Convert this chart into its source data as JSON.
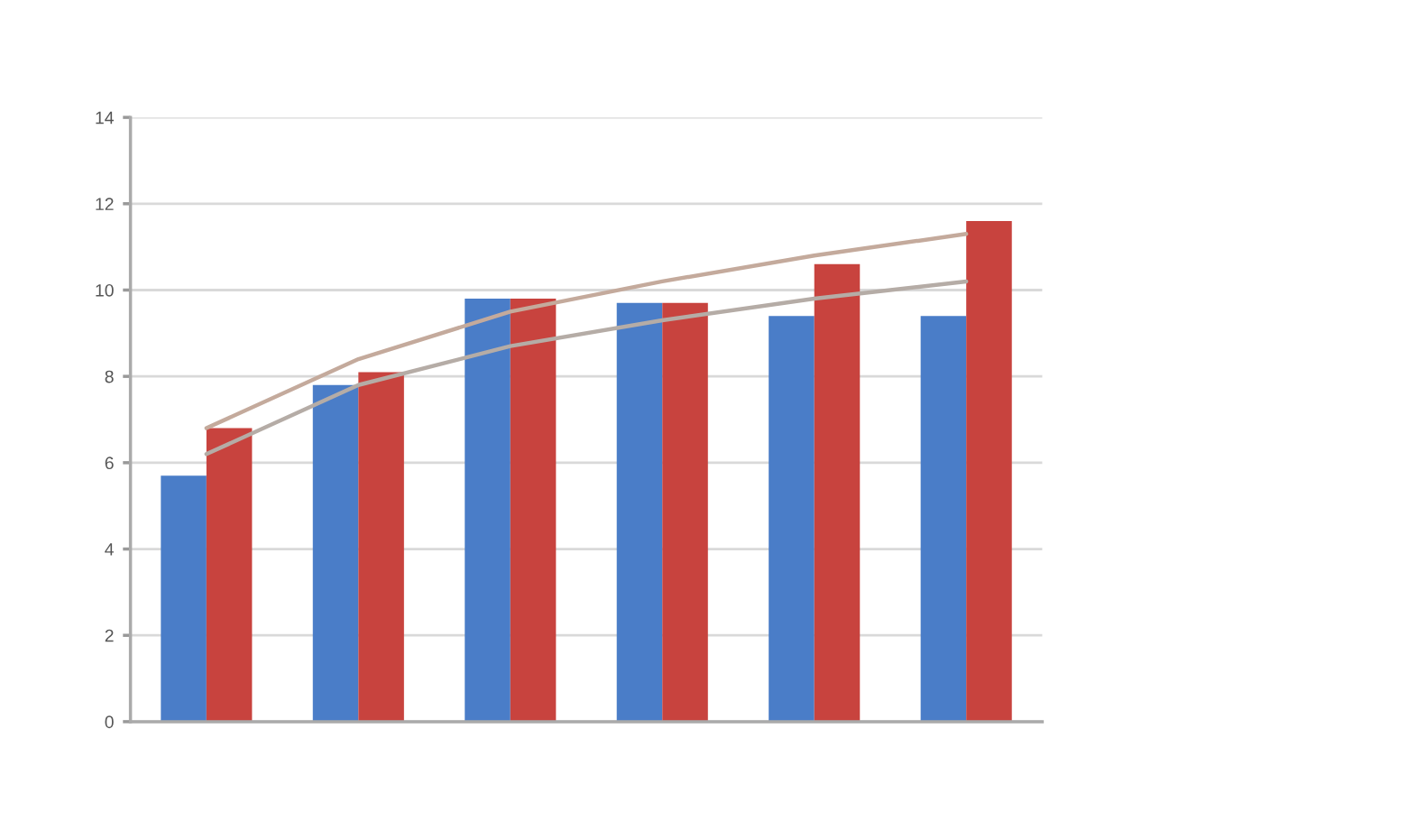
{
  "chart_data": {
    "type": "bar",
    "categories": [
      null,
      null,
      null,
      null,
      null,
      null
    ],
    "series": [
      {
        "color": "#4a7dc8",
        "values": [
          5.7,
          7.8,
          9.8,
          9.7,
          9.4,
          9.4
        ]
      },
      {
        "color": "#c8433e",
        "values": [
          6.8,
          8.1,
          9.8,
          9.7,
          10.6,
          11.6
        ]
      },
      {
        "type": "line",
        "color": "#b5aca6",
        "values": [
          6.2,
          7.8,
          8.7,
          9.3,
          9.8,
          10.2
        ]
      },
      {
        "type": "line",
        "color": "#c4aa9c",
        "values": [
          6.8,
          8.4,
          9.5,
          10.2,
          10.8,
          11.3
        ]
      }
    ],
    "ylim": [
      0,
      14
    ],
    "yticks": [
      0,
      2,
      4,
      6,
      8,
      10,
      12,
      14
    ],
    "grid": "y"
  }
}
